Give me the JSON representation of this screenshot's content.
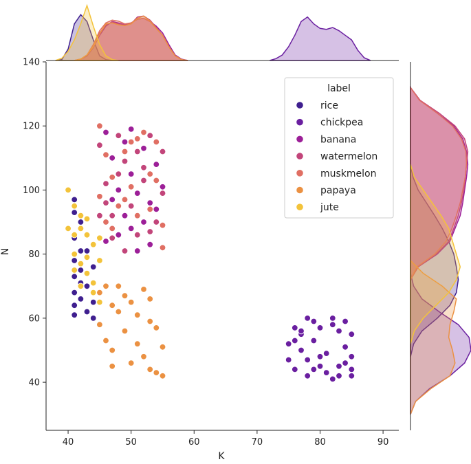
{
  "chart_data": {
    "type": "scatter",
    "xlabel": "K",
    "ylabel": "N",
    "xlim": [
      36.5,
      92.5
    ],
    "ylim": [
      25,
      140
    ],
    "x_ticks": [
      40,
      50,
      60,
      70,
      80,
      90
    ],
    "y_ticks": [
      40,
      60,
      80,
      100,
      120,
      140
    ],
    "grid": false,
    "legend": {
      "title": "label",
      "placement": "top-right"
    },
    "marginals": {
      "top": "kde-by-label",
      "right": "kde-by-label"
    },
    "series": [
      {
        "name": "rice",
        "color": "#3f1f8f",
        "points": [
          [
            41,
            97
          ],
          [
            41,
            93
          ],
          [
            42,
            90
          ],
          [
            41,
            85
          ],
          [
            43,
            81
          ],
          [
            41,
            78
          ],
          [
            42,
            75
          ],
          [
            41,
            73
          ],
          [
            43,
            70
          ],
          [
            41,
            68
          ],
          [
            42,
            66
          ],
          [
            41,
            64
          ],
          [
            43,
            62
          ],
          [
            41,
            61
          ],
          [
            44,
            60
          ],
          [
            42,
            71
          ],
          [
            44,
            76
          ],
          [
            43,
            86
          ],
          [
            44,
            65
          ],
          [
            42,
            81
          ]
        ]
      },
      {
        "name": "chickpea",
        "color": "#6a1fa0",
        "points": [
          [
            75,
            52
          ],
          [
            76,
            57
          ],
          [
            75,
            47
          ],
          [
            77,
            55
          ],
          [
            76,
            44
          ],
          [
            78,
            60
          ],
          [
            77,
            50
          ],
          [
            78,
            47
          ],
          [
            79,
            59
          ],
          [
            78,
            42
          ],
          [
            79,
            53
          ],
          [
            80,
            48
          ],
          [
            80,
            57
          ],
          [
            81,
            43
          ],
          [
            81,
            49
          ],
          [
            82,
            60
          ],
          [
            82,
            41
          ],
          [
            83,
            45
          ],
          [
            83,
            56
          ],
          [
            84,
            59
          ],
          [
            84,
            51
          ],
          [
            85,
            55
          ],
          [
            85,
            48
          ],
          [
            85,
            44
          ],
          [
            85,
            42
          ],
          [
            80,
            45
          ],
          [
            79,
            44
          ],
          [
            77,
            56
          ],
          [
            76,
            53
          ],
          [
            83,
            42
          ],
          [
            84,
            46
          ],
          [
            82,
            58
          ]
        ]
      },
      {
        "name": "banana",
        "color": "#9c1f98",
        "points": [
          [
            46,
            118
          ],
          [
            47,
            110
          ],
          [
            49,
            115
          ],
          [
            50,
            105
          ],
          [
            51,
            99
          ],
          [
            52,
            113
          ],
          [
            53,
            96
          ],
          [
            49,
            92
          ],
          [
            48,
            100
          ],
          [
            52,
            90
          ],
          [
            50,
            88
          ],
          [
            54,
            108
          ],
          [
            46,
            84
          ],
          [
            53,
            83
          ],
          [
            51,
            81
          ],
          [
            47,
            97
          ],
          [
            55,
            101
          ],
          [
            48,
            86
          ],
          [
            54,
            94
          ],
          [
            50,
            119
          ]
        ]
      },
      {
        "name": "watermelon",
        "color": "#c2457a",
        "points": [
          [
            45,
            114
          ],
          [
            46,
            102
          ],
          [
            47,
            92
          ],
          [
            48,
            117
          ],
          [
            49,
            109
          ],
          [
            51,
            112
          ],
          [
            52,
            103
          ],
          [
            53,
            117
          ],
          [
            54,
            90
          ],
          [
            55,
            112
          ],
          [
            50,
            95
          ],
          [
            45,
            92
          ],
          [
            47,
            85
          ],
          [
            49,
            81
          ],
          [
            53,
            87
          ],
          [
            55,
            99
          ],
          [
            46,
            96
          ],
          [
            51,
            86
          ],
          [
            48,
            105
          ],
          [
            52,
            107
          ]
        ]
      },
      {
        "name": "muskmelon",
        "color": "#e06f63",
        "points": [
          [
            45,
            120
          ],
          [
            46,
            111
          ],
          [
            47,
            104
          ],
          [
            48,
            95
          ],
          [
            49,
            112
          ],
          [
            50,
            101
          ],
          [
            51,
            92
          ],
          [
            52,
            118
          ],
          [
            53,
            105
          ],
          [
            54,
            115
          ],
          [
            55,
            89
          ],
          [
            45,
            98
          ],
          [
            47,
            88
          ],
          [
            49,
            97
          ],
          [
            51,
            116
          ],
          [
            53,
            94
          ],
          [
            55,
            82
          ],
          [
            46,
            90
          ],
          [
            50,
            115
          ],
          [
            54,
            103
          ]
        ]
      },
      {
        "name": "papaya",
        "color": "#eb9142",
        "points": [
          [
            45,
            68
          ],
          [
            46,
            70
          ],
          [
            47,
            64
          ],
          [
            48,
            62
          ],
          [
            49,
            56
          ],
          [
            50,
            65
          ],
          [
            51,
            52
          ],
          [
            52,
            48
          ],
          [
            53,
            44
          ],
          [
            54,
            57
          ],
          [
            55,
            51
          ],
          [
            45,
            58
          ],
          [
            47,
            45
          ],
          [
            46,
            53
          ],
          [
            49,
            67
          ],
          [
            50,
            46
          ],
          [
            52,
            69
          ],
          [
            53,
            59
          ],
          [
            54,
            43
          ],
          [
            55,
            42
          ],
          [
            48,
            70
          ],
          [
            51,
            61
          ],
          [
            47,
            50
          ],
          [
            53,
            66
          ]
        ]
      },
      {
        "name": "jute",
        "color": "#f3c33a",
        "points": [
          [
            40,
            100
          ],
          [
            41,
            95
          ],
          [
            42,
            88
          ],
          [
            43,
            91
          ],
          [
            44,
            83
          ],
          [
            45,
            78
          ],
          [
            41,
            80
          ],
          [
            42,
            77
          ],
          [
            43,
            74
          ],
          [
            44,
            68
          ],
          [
            45,
            65
          ],
          [
            42,
            70
          ],
          [
            43,
            86
          ],
          [
            40,
            88
          ],
          [
            41,
            86
          ],
          [
            45,
            85
          ],
          [
            44,
            71
          ],
          [
            43,
            79
          ],
          [
            41,
            75
          ],
          [
            42,
            92
          ]
        ]
      }
    ],
    "top_kde": [
      {
        "name": "rice",
        "x": [
          38,
          39,
          40,
          41,
          42,
          43,
          44,
          45,
          46,
          47
        ],
        "y": [
          0,
          0.02,
          0.25,
          0.8,
          1.0,
          0.85,
          0.45,
          0.1,
          0.02,
          0
        ]
      },
      {
        "name": "chickpea",
        "x": [
          72,
          73,
          74,
          75,
          76,
          77,
          78,
          79,
          80,
          81,
          82,
          83,
          84,
          85,
          86,
          87,
          88
        ],
        "y": [
          0,
          0.04,
          0.12,
          0.3,
          0.55,
          0.85,
          0.95,
          0.8,
          0.7,
          0.68,
          0.72,
          0.65,
          0.55,
          0.45,
          0.22,
          0.06,
          0
        ]
      },
      {
        "name": "banana",
        "x": [
          41,
          42,
          43,
          44,
          45,
          46,
          47,
          48,
          49,
          50,
          51,
          52,
          53,
          54,
          55,
          56,
          57,
          58,
          59
        ],
        "y": [
          0,
          0.03,
          0.1,
          0.28,
          0.55,
          0.75,
          0.85,
          0.82,
          0.78,
          0.82,
          0.9,
          0.92,
          0.85,
          0.75,
          0.6,
          0.35,
          0.12,
          0.03,
          0
        ]
      },
      {
        "name": "watermelon",
        "x": [
          41,
          42,
          43,
          44,
          45,
          46,
          47,
          48,
          49,
          50,
          51,
          52,
          53,
          54,
          55,
          56,
          57,
          58,
          59
        ],
        "y": [
          0,
          0.03,
          0.12,
          0.32,
          0.6,
          0.78,
          0.84,
          0.8,
          0.78,
          0.8,
          0.95,
          0.97,
          0.88,
          0.72,
          0.55,
          0.3,
          0.1,
          0.02,
          0
        ]
      },
      {
        "name": "muskmelon",
        "x": [
          41,
          42,
          43,
          44,
          45,
          46,
          47,
          48,
          49,
          50,
          51,
          52,
          53,
          54,
          55,
          56,
          57,
          58,
          59
        ],
        "y": [
          0,
          0.03,
          0.12,
          0.35,
          0.65,
          0.82,
          0.88,
          0.86,
          0.8,
          0.82,
          0.9,
          0.92,
          0.85,
          0.7,
          0.55,
          0.3,
          0.1,
          0.02,
          0
        ]
      },
      {
        "name": "papaya",
        "x": [
          41,
          42,
          43,
          44,
          45,
          46,
          47,
          48,
          49,
          50,
          51,
          52,
          53,
          54,
          55,
          56,
          57,
          58,
          59
        ],
        "y": [
          0,
          0.03,
          0.12,
          0.3,
          0.58,
          0.8,
          0.82,
          0.78,
          0.76,
          0.8,
          0.92,
          0.97,
          0.86,
          0.7,
          0.55,
          0.3,
          0.1,
          0.02,
          0
        ]
      },
      {
        "name": "jute",
        "x": [
          38,
          39,
          40,
          41,
          42,
          43,
          44,
          45,
          46,
          47,
          48
        ],
        "y": [
          0,
          0.05,
          0.2,
          0.45,
          0.8,
          1.2,
          0.75,
          0.35,
          0.1,
          0.02,
          0
        ]
      }
    ],
    "right_kde": [
      {
        "name": "rice",
        "y": [
          48,
          52,
          56,
          60,
          64,
          68,
          72,
          76,
          80,
          84,
          88,
          92,
          96,
          100,
          104,
          108
        ],
        "x": [
          0,
          0.05,
          0.18,
          0.42,
          0.62,
          0.72,
          0.75,
          0.72,
          0.68,
          0.6,
          0.5,
          0.38,
          0.25,
          0.12,
          0.04,
          0
        ]
      },
      {
        "name": "chickpea",
        "y": [
          30,
          34,
          38,
          42,
          46,
          50,
          54,
          58,
          62,
          66,
          70,
          74
        ],
        "x": [
          0,
          0.08,
          0.3,
          0.62,
          0.85,
          0.95,
          0.92,
          0.75,
          0.45,
          0.18,
          0.05,
          0
        ]
      },
      {
        "name": "banana",
        "y": [
          72,
          76,
          80,
          84,
          88,
          92,
          96,
          100,
          104,
          108,
          112,
          116,
          120,
          124,
          128,
          132
        ],
        "x": [
          0,
          0.12,
          0.42,
          0.62,
          0.7,
          0.78,
          0.82,
          0.85,
          0.88,
          0.9,
          0.88,
          0.82,
          0.68,
          0.42,
          0.15,
          0
        ]
      },
      {
        "name": "watermelon",
        "y": [
          72,
          76,
          80,
          84,
          88,
          92,
          96,
          100,
          104,
          108,
          112,
          116,
          120,
          124,
          128,
          132
        ],
        "x": [
          0,
          0.12,
          0.4,
          0.6,
          0.68,
          0.75,
          0.8,
          0.84,
          0.86,
          0.88,
          0.9,
          0.85,
          0.7,
          0.45,
          0.15,
          0
        ]
      },
      {
        "name": "muskmelon",
        "y": [
          72,
          76,
          80,
          84,
          88,
          92,
          96,
          100,
          104,
          108,
          112,
          116,
          120,
          124,
          128,
          132
        ],
        "x": [
          0,
          0.1,
          0.38,
          0.56,
          0.65,
          0.72,
          0.78,
          0.82,
          0.86,
          0.88,
          0.87,
          0.8,
          0.66,
          0.42,
          0.14,
          0
        ]
      },
      {
        "name": "papaya",
        "y": [
          30,
          34,
          38,
          42,
          46,
          50,
          54,
          58,
          62,
          66,
          70,
          74,
          78
        ],
        "x": [
          0,
          0.08,
          0.32,
          0.62,
          0.7,
          0.66,
          0.6,
          0.62,
          0.68,
          0.72,
          0.5,
          0.2,
          0
        ]
      },
      {
        "name": "jute",
        "y": [
          52,
          56,
          60,
          64,
          68,
          72,
          76,
          80,
          84,
          88,
          92,
          96,
          100,
          104,
          108
        ],
        "x": [
          0,
          0.06,
          0.2,
          0.4,
          0.6,
          0.72,
          0.78,
          0.72,
          0.66,
          0.6,
          0.48,
          0.34,
          0.2,
          0.06,
          0
        ]
      }
    ]
  }
}
